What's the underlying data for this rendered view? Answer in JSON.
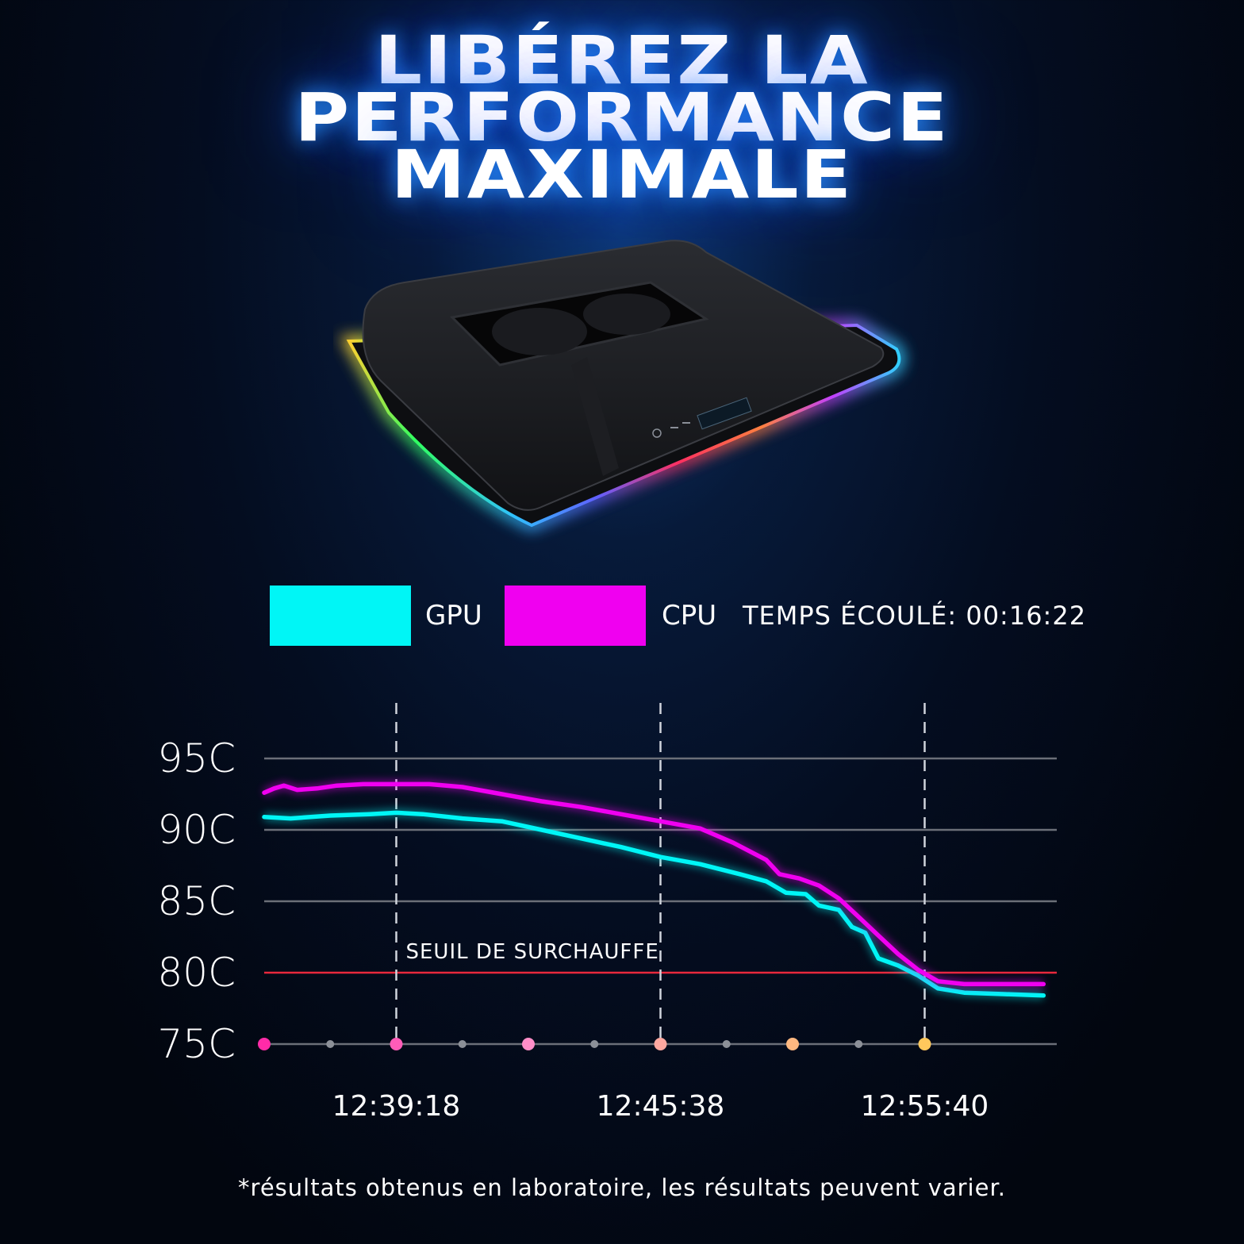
{
  "headline": [
    "LIBÉREZ LA",
    "PERFORMANCE",
    "MAXIMALE"
  ],
  "legend": {
    "gpu_label": "GPU",
    "cpu_label": "CPU",
    "elapsed_text": "TEMPS ÉCOULÉ: 00:16:22"
  },
  "colors": {
    "gpu": "#00f6f6",
    "cpu": "#f000f0",
    "threshold": "#e8283c",
    "grid": "#6b6f78",
    "dots": [
      "#ff2ba8",
      "#ff5cb8",
      "#ff8ec8",
      "#ffa8a0",
      "#ffb880",
      "#ffc85c"
    ]
  },
  "chart_data": {
    "type": "line",
    "ylim": [
      75,
      95
    ],
    "yticks": [
      95,
      90,
      85,
      80,
      75
    ],
    "ytick_labels": [
      "95C",
      "90C",
      "85C",
      "80C",
      "75C"
    ],
    "xlim": [
      0,
      12
    ],
    "xticks": [
      2,
      6,
      10
    ],
    "xtick_labels": [
      "12:39:18",
      "12:45:38",
      "12:55:40"
    ],
    "grid": true,
    "annotation": {
      "text": "SEUIL DE SURCHAUFFE",
      "y": 80
    },
    "series": [
      {
        "name": "GPU",
        "x": [
          0,
          0.4,
          1,
          1.6,
          2,
          2.4,
          3,
          3.6,
          4.2,
          4.8,
          5.4,
          6,
          6.6,
          7.2,
          7.6,
          7.9,
          8.2,
          8.4,
          8.7,
          8.9,
          9.1,
          9.3,
          9.6,
          9.9,
          10.2,
          10.6,
          11.2,
          11.8
        ],
        "values": [
          90.9,
          90.8,
          91.0,
          91.1,
          91.2,
          91.1,
          90.8,
          90.6,
          90.0,
          89.4,
          88.8,
          88.1,
          87.6,
          86.9,
          86.4,
          85.6,
          85.5,
          84.7,
          84.4,
          83.2,
          82.8,
          81.0,
          80.5,
          79.8,
          78.9,
          78.6,
          78.5,
          78.4
        ]
      },
      {
        "name": "CPU",
        "x": [
          0,
          0.15,
          0.3,
          0.5,
          0.8,
          1.1,
          1.5,
          2,
          2.5,
          3,
          3.6,
          4.2,
          4.8,
          5.4,
          6,
          6.6,
          7.1,
          7.6,
          7.8,
          8.1,
          8.4,
          8.7,
          9.0,
          9.3,
          9.6,
          9.9,
          10.2,
          10.6,
          11.2,
          11.8
        ],
        "values": [
          92.6,
          92.9,
          93.1,
          92.8,
          92.9,
          93.1,
          93.2,
          93.2,
          93.2,
          93.0,
          92.5,
          92.0,
          91.6,
          91.1,
          90.6,
          90.1,
          89.1,
          87.9,
          86.9,
          86.6,
          86.1,
          85.2,
          83.9,
          82.6,
          81.3,
          80.2,
          79.4,
          79.2,
          79.2,
          79.2
        ]
      }
    ]
  },
  "footnote": "*résultats obtenus en laboratoire, les résultats peuvent varier."
}
